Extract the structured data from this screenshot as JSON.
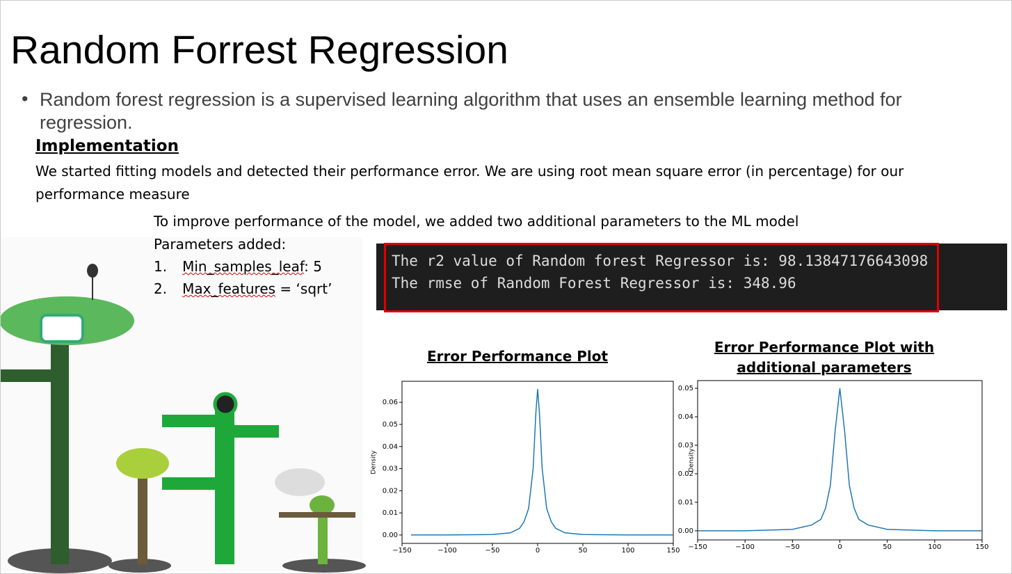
{
  "slide": {
    "title": "Random Forrest Regression",
    "bullet": "Random forest regression is a supervised learning algorithm that uses an ensemble learning method for regression.",
    "heading": "Implementation",
    "paragraph": "We started fitting models and detected their performance error. We are using root mean square error (in percentage) for our performance measure",
    "improve": "To improve performance of the model, we added two additional parameters to the ML model",
    "params_heading": "Parameters added:",
    "params": [
      {
        "number": "1.",
        "name": "Min_samples_leaf",
        "rest": ": 5"
      },
      {
        "number": "2.",
        "name": "Max_features",
        "rest": " = ‘sqrt’"
      }
    ],
    "terminal": [
      "The r2 value of Random forest Regressor is: 98.13847176643098",
      "The rmse of Random Forest Regressor is: 348.96"
    ]
  },
  "chart_data": [
    {
      "type": "line",
      "title": "Error Performance Plot",
      "ylabel": "Density",
      "x": [
        -140,
        -100,
        -50,
        -30,
        -20,
        -15,
        -10,
        -5,
        -2,
        0,
        2,
        5,
        10,
        15,
        20,
        30,
        50,
        100,
        150
      ],
      "series": [
        {
          "color": "#1f77b4",
          "values": [
            0,
            0,
            0.0002,
            0.001,
            0.003,
            0.006,
            0.012,
            0.03,
            0.055,
            0.066,
            0.055,
            0.03,
            0.012,
            0.006,
            0.003,
            0.001,
            0.0002,
            0,
            0
          ]
        }
      ],
      "xlim": [
        -150,
        150
      ],
      "ylim": [
        -0.0038,
        0.0695
      ],
      "xticks": [
        {
          "value": -150,
          "label": "−150"
        },
        {
          "value": -100,
          "label": "−100"
        },
        {
          "value": -50,
          "label": "−50"
        },
        0,
        50,
        100,
        150
      ],
      "yticks": [
        {
          "value": 0,
          "label": "0.00"
        },
        {
          "value": 0.01,
          "label": "0.01"
        },
        {
          "value": 0.02,
          "label": "0.02"
        },
        {
          "value": 0.03,
          "label": "0.03"
        },
        {
          "value": 0.04,
          "label": "0.04"
        },
        {
          "value": 0.05,
          "label": "0.05"
        },
        {
          "value": 0.06,
          "label": "0.06"
        }
      ]
    },
    {
      "type": "line",
      "title": "Error Performance Plot with additional parameters",
      "ylabel": "Density",
      "x": [
        -150,
        -100,
        -50,
        -30,
        -20,
        -15,
        -10,
        -5,
        0,
        5,
        10,
        15,
        20,
        30,
        50,
        100,
        150
      ],
      "series": [
        {
          "color": "#1f77b4",
          "values": [
            0,
            0,
            0.0005,
            0.002,
            0.004,
            0.008,
            0.016,
            0.035,
            0.05,
            0.035,
            0.016,
            0.008,
            0.004,
            0.002,
            0.0005,
            0,
            0
          ]
        }
      ],
      "xlim": [
        -150,
        150
      ],
      "ylim": [
        -0.0032,
        0.0527
      ],
      "xticks": [
        {
          "value": -150,
          "label": "−150"
        },
        {
          "value": -100,
          "label": "−100"
        },
        {
          "value": -50,
          "label": "−50"
        },
        0,
        50,
        100,
        150
      ],
      "yticks": [
        {
          "value": 0,
          "label": "0.00"
        },
        {
          "value": 0.01,
          "label": "0.01"
        },
        {
          "value": 0.02,
          "label": "0.02"
        },
        {
          "value": 0.03,
          "label": "0.03"
        },
        {
          "value": 0.04,
          "label": "0.04"
        },
        {
          "value": 0.05,
          "label": "0.05"
        }
      ]
    }
  ]
}
